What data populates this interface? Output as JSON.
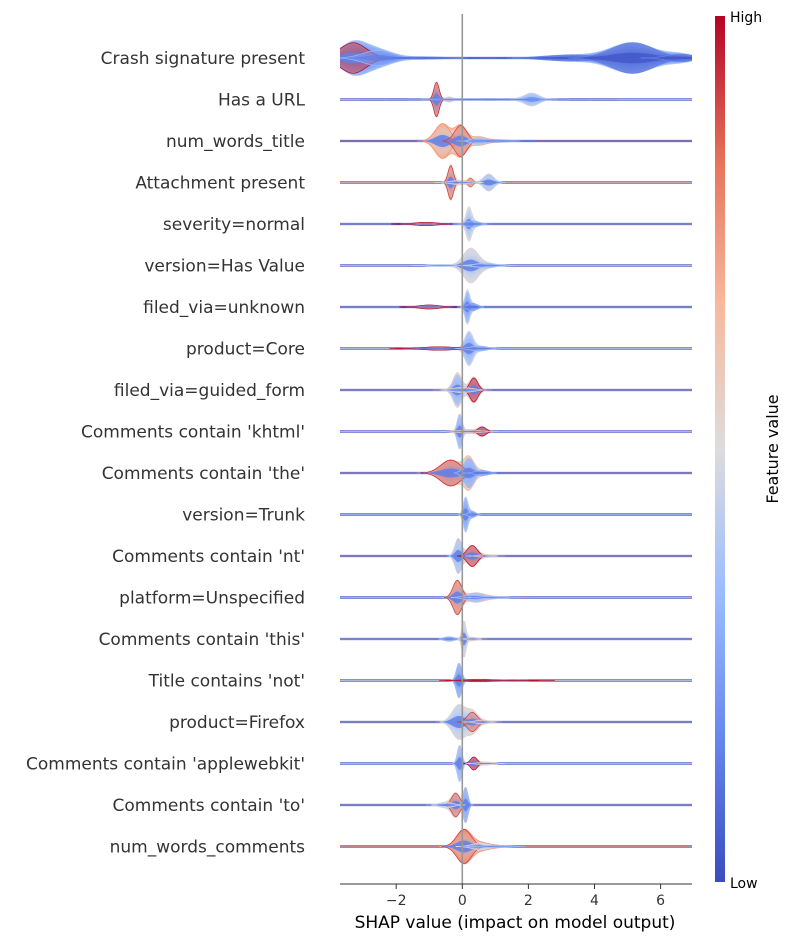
{
  "chart_data": {
    "type": "violin",
    "plot_style": "shap-layered-violin",
    "xlabel": "SHAP value (impact on model output)",
    "xlim": [
      -3.7,
      6.95
    ],
    "x_ticks": [
      -2,
      0,
      2,
      4,
      6
    ],
    "x_tick_labels": [
      "−2",
      "0",
      "2",
      "4",
      "6"
    ],
    "zero_line": true,
    "grid": false,
    "colorbar": {
      "title": "Feature value",
      "high_label": "High",
      "low_label": "Low",
      "colors": [
        "#3b4cc0",
        "#7396f5",
        "#b0cbfc",
        "#dddcdc",
        "#f6bfa6",
        "#ee8468",
        "#b40426"
      ]
    },
    "features": [
      {
        "name": "Crash signature present",
        "components": [
          {
            "x": -3.3,
            "spread": 0.4,
            "amp": 1.0,
            "v": 0.92
          },
          {
            "x": -2.55,
            "spread": 0.45,
            "amp": 0.5,
            "v": 0.2
          },
          {
            "x": -1.2,
            "spread": 0.7,
            "amp": 0.07,
            "v": 0.05
          },
          {
            "x": 3.3,
            "spread": 0.8,
            "amp": 0.2,
            "v": 0.05
          },
          {
            "x": 5.15,
            "spread": 0.65,
            "amp": 1.0,
            "v": 0.05
          },
          {
            "x": 6.6,
            "spread": 0.4,
            "amp": 0.25,
            "v": 0.05
          }
        ]
      },
      {
        "name": "Has a URL",
        "components": [
          {
            "x": -0.78,
            "spread": 0.08,
            "amp": 1.0,
            "v": 0.88
          },
          {
            "x": -0.4,
            "spread": 0.1,
            "amp": 0.12,
            "v": 0.6
          },
          {
            "x": 2.1,
            "spread": 0.22,
            "amp": 0.35,
            "v": 0.3
          },
          {
            "x": 0.8,
            "spread": 1.3,
            "amp": 0.05,
            "v": 0.15
          }
        ]
      },
      {
        "name": "num_words_title",
        "components": [
          {
            "x": -0.6,
            "spread": 0.22,
            "amp": 0.95,
            "v": 0.72
          },
          {
            "x": -0.05,
            "spread": 0.18,
            "amp": 0.85,
            "v": 0.85
          },
          {
            "x": 0.5,
            "spread": 0.2,
            "amp": 0.2,
            "v": 0.25
          },
          {
            "x": 1.0,
            "spread": 0.4,
            "amp": 0.07,
            "v": 0.15
          }
        ]
      },
      {
        "name": "Attachment present",
        "components": [
          {
            "x": -0.35,
            "spread": 0.08,
            "amp": 0.8,
            "v": 0.85
          },
          {
            "x": 0.25,
            "spread": 0.07,
            "amp": 0.2,
            "v": 0.8
          },
          {
            "x": 0.8,
            "spread": 0.15,
            "amp": 0.4,
            "v": 0.3
          },
          {
            "x": -0.1,
            "spread": 0.25,
            "amp": 0.1,
            "v": 0.5
          }
        ]
      },
      {
        "name": "severity=normal",
        "components": [
          {
            "x": 0.2,
            "spread": 0.08,
            "amp": 0.7,
            "v": 0.4
          },
          {
            "x": -1.1,
            "spread": 0.35,
            "amp": 0.08,
            "v": 0.9
          },
          {
            "x": 0.3,
            "spread": 0.2,
            "amp": 0.15,
            "v": 0.2
          }
        ]
      },
      {
        "name": "version=Has Value",
        "components": [
          {
            "x": 0.25,
            "spread": 0.22,
            "amp": 0.85,
            "v": 0.5
          },
          {
            "x": 0.7,
            "spread": 0.3,
            "amp": 0.12,
            "v": 0.25
          },
          {
            "x": -0.6,
            "spread": 0.3,
            "amp": 0.05,
            "v": 0.3
          }
        ]
      },
      {
        "name": "filed_via=unknown",
        "components": [
          {
            "x": 0.15,
            "spread": 0.07,
            "amp": 0.6,
            "v": 0.25
          },
          {
            "x": -1.0,
            "spread": 0.3,
            "amp": 0.08,
            "v": 0.9
          },
          {
            "x": 0.3,
            "spread": 0.15,
            "amp": 0.15,
            "v": 0.15
          }
        ]
      },
      {
        "name": "product=Core",
        "components": [
          {
            "x": 0.2,
            "spread": 0.12,
            "amp": 0.65,
            "v": 0.3
          },
          {
            "x": -0.7,
            "spread": 0.5,
            "amp": 0.07,
            "v": 0.9
          },
          {
            "x": 0.5,
            "spread": 0.25,
            "amp": 0.1,
            "v": 0.2
          }
        ]
      },
      {
        "name": "filed_via=guided_form",
        "components": [
          {
            "x": -0.15,
            "spread": 0.12,
            "amp": 0.7,
            "v": 0.25
          },
          {
            "x": 0.35,
            "spread": 0.12,
            "amp": 0.55,
            "v": 0.95
          },
          {
            "x": 0.0,
            "spread": 0.3,
            "amp": 0.12,
            "v": 0.5
          }
        ]
      },
      {
        "name": "Comments contain 'khtml'",
        "components": [
          {
            "x": -0.08,
            "spread": 0.07,
            "amp": 0.75,
            "v": 0.25
          },
          {
            "x": 0.6,
            "spread": 0.12,
            "amp": 0.2,
            "v": 0.95
          },
          {
            "x": 0.2,
            "spread": 0.3,
            "amp": 0.08,
            "v": 0.6
          }
        ]
      },
      {
        "name": "Comments contain 'the'",
        "components": [
          {
            "x": -0.35,
            "spread": 0.3,
            "amp": 0.75,
            "v": 0.88
          },
          {
            "x": 0.2,
            "spread": 0.15,
            "amp": 0.85,
            "v": 0.2
          },
          {
            "x": 0.6,
            "spread": 0.2,
            "amp": 0.15,
            "v": 0.15
          }
        ]
      },
      {
        "name": "version=Trunk",
        "components": [
          {
            "x": 0.1,
            "spread": 0.07,
            "amp": 0.55,
            "v": 0.3
          },
          {
            "x": 0.3,
            "spread": 0.1,
            "amp": 0.1,
            "v": 0.2
          }
        ]
      },
      {
        "name": "Comments contain 'nt'",
        "components": [
          {
            "x": -0.12,
            "spread": 0.1,
            "amp": 0.75,
            "v": 0.3
          },
          {
            "x": 0.3,
            "spread": 0.15,
            "amp": 0.45,
            "v": 0.92
          },
          {
            "x": 0.7,
            "spread": 0.2,
            "amp": 0.06,
            "v": 0.5
          }
        ]
      },
      {
        "name": "platform=Unspecified",
        "components": [
          {
            "x": -0.15,
            "spread": 0.13,
            "amp": 0.95,
            "v": 0.85
          },
          {
            "x": 0.4,
            "spread": 0.25,
            "amp": 0.25,
            "v": 0.25
          },
          {
            "x": 0.9,
            "spread": 0.3,
            "amp": 0.06,
            "v": 0.2
          }
        ]
      },
      {
        "name": "Comments contain 'this'",
        "components": [
          {
            "x": 0.05,
            "spread": 0.06,
            "amp": 0.8,
            "v": 0.5
          },
          {
            "x": -0.4,
            "spread": 0.15,
            "amp": 0.1,
            "v": 0.2
          },
          {
            "x": 0.3,
            "spread": 0.15,
            "amp": 0.08,
            "v": 0.5
          }
        ]
      },
      {
        "name": "Title contains 'not'",
        "components": [
          {
            "x": -0.1,
            "spread": 0.08,
            "amp": 0.85,
            "v": 0.2
          },
          {
            "x": 0.5,
            "spread": 0.4,
            "amp": 0.06,
            "v": 0.9
          },
          {
            "x": 1.3,
            "spread": 0.5,
            "amp": 0.02,
            "v": 0.9
          }
        ]
      },
      {
        "name": "product=Firefox",
        "components": [
          {
            "x": -0.1,
            "spread": 0.2,
            "amp": 0.9,
            "v": 0.4
          },
          {
            "x": 0.3,
            "spread": 0.15,
            "amp": 0.5,
            "v": 0.85
          },
          {
            "x": 0.6,
            "spread": 0.2,
            "amp": 0.1,
            "v": 0.5
          }
        ]
      },
      {
        "name": "Comments contain 'applewebkit'",
        "components": [
          {
            "x": -0.08,
            "spread": 0.07,
            "amp": 0.7,
            "v": 0.25
          },
          {
            "x": 0.35,
            "spread": 0.1,
            "amp": 0.25,
            "v": 0.95
          },
          {
            "x": 0.7,
            "spread": 0.2,
            "amp": 0.06,
            "v": 0.5
          }
        ]
      },
      {
        "name": "Comments contain 'to'",
        "components": [
          {
            "x": -0.2,
            "spread": 0.12,
            "amp": 0.5,
            "v": 0.85
          },
          {
            "x": 0.1,
            "spread": 0.07,
            "amp": 0.75,
            "v": 0.2
          },
          {
            "x": -0.5,
            "spread": 0.2,
            "amp": 0.12,
            "v": 0.4
          }
        ]
      },
      {
        "name": "num_words_comments",
        "components": [
          {
            "x": 0.05,
            "spread": 0.22,
            "amp": 1.0,
            "v": 0.85
          },
          {
            "x": 0.55,
            "spread": 0.25,
            "amp": 0.2,
            "v": 0.4
          },
          {
            "x": 1.0,
            "spread": 0.3,
            "amp": 0.06,
            "v": 0.2
          }
        ]
      }
    ]
  }
}
